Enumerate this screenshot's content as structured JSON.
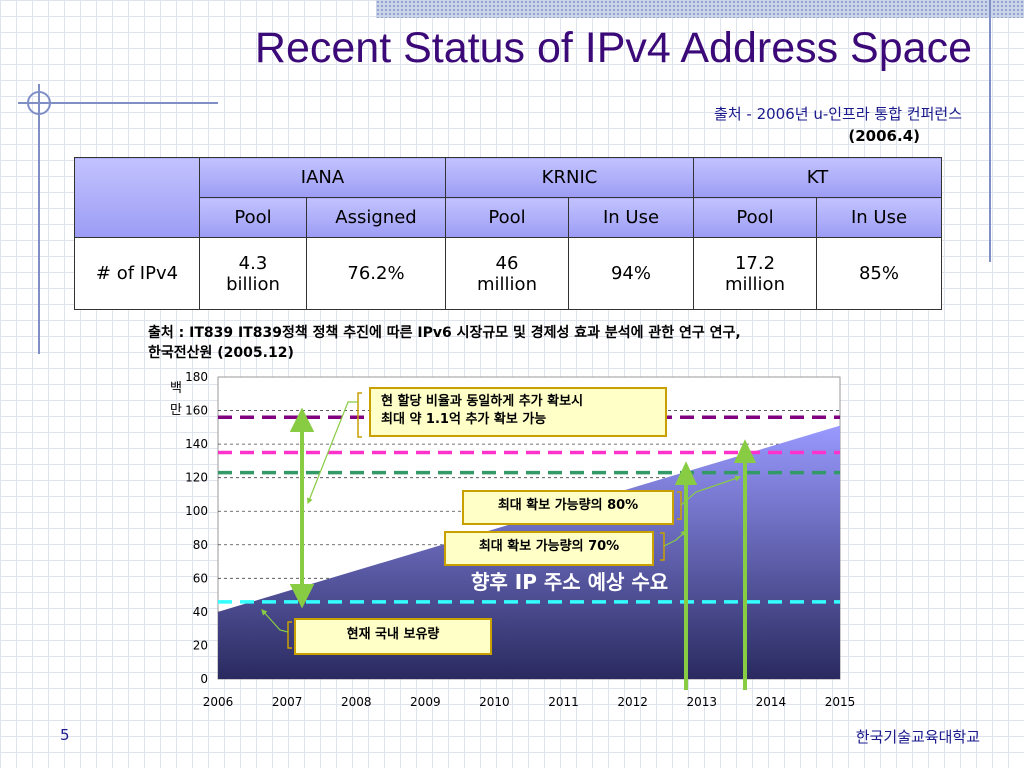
{
  "slide": {
    "title": "Recent Status of IPv4 Address Space",
    "source_line1": "출처 - 2006년 u-인프라 통합 컨퍼런스",
    "source_line2": "(2006.4)",
    "chart_source_line1": "출처 : IT839 IT839정책 정책 추진에 따른 IPv6 시장규모 및 경제성 효과 분석에 관한 연구 연구,",
    "chart_source_line2": "한국전산원 (2005.12)",
    "page_number": "5",
    "footer": "한국기술교육대학교"
  },
  "table": {
    "groups": [
      "IANA",
      "KRNIC",
      "KT"
    ],
    "subheaders": [
      "Pool",
      "Assigned",
      "Pool",
      "In Use",
      "Pool",
      "In Use"
    ],
    "row_label": "# of IPv4",
    "values": [
      {
        "line1": "4.3",
        "line2": "billion"
      },
      {
        "line1": "76.2%",
        "line2": ""
      },
      {
        "line1": "46",
        "line2": "million"
      },
      {
        "line1": "94%",
        "line2": ""
      },
      {
        "line1": "17.2",
        "line2": "million"
      },
      {
        "line1": "85%",
        "line2": ""
      }
    ]
  },
  "callouts": {
    "max_line1": "현 할당 비율과 동일하게 추가 확보시",
    "max_line2": "최대 약 1.1억 추가 확보 가능",
    "p80": "최대 확보 가능량의 80%",
    "p70": "최대 확보 가능량의 70%",
    "current": "현재 국내 보유량",
    "demand": "향후 IP 주소 예상 수요"
  },
  "colors": {
    "title": "#3c0a78",
    "grid_lines": "#7f8fc6",
    "header_fill": "#a8a8fa",
    "arrow": "#88cc44",
    "line_max": "#800080",
    "line_magenta": "#ff33cc",
    "line_green": "#339966",
    "line_cyan": "#33ffff"
  },
  "chart_data": {
    "type": "area",
    "ylabel": "백만",
    "xlim": [
      2006,
      2015
    ],
    "ylim": [
      0,
      180
    ],
    "x_ticks": [
      2006,
      2007,
      2008,
      2009,
      2010,
      2011,
      2012,
      2013,
      2014,
      2015
    ],
    "y_ticks": [
      0,
      20,
      40,
      60,
      80,
      100,
      120,
      140,
      160,
      180
    ],
    "grid": true,
    "series": [
      {
        "x": [
          2006,
          2015
        ],
        "y": [
          40,
          151
        ]
      }
    ],
    "reference_lines": [
      {
        "y": 156,
        "color": "#800080"
      },
      {
        "y": 135,
        "color": "#ff33cc"
      },
      {
        "y": 123,
        "color": "#339966"
      },
      {
        "y": 46,
        "color": "#33ffff"
      }
    ]
  }
}
